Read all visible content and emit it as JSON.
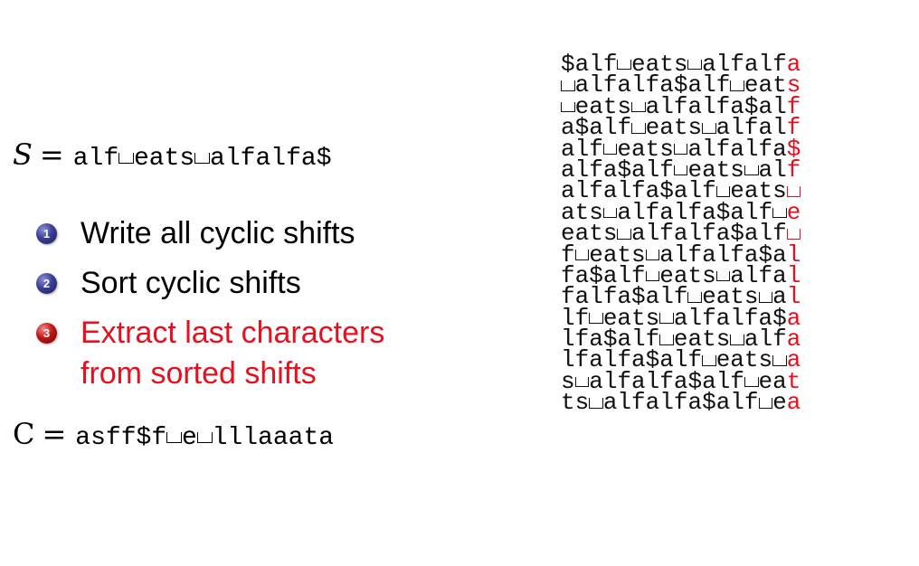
{
  "formula_s": {
    "lhs": "S",
    "eq": "=",
    "value": "alf eats alfalfa$"
  },
  "steps": [
    {
      "number": "1",
      "text": [
        "Write all cyclic shifts"
      ],
      "highlighted": false
    },
    {
      "number": "2",
      "text": [
        "Sort cyclic shifts"
      ],
      "highlighted": false
    },
    {
      "number": "3",
      "text": [
        "Extract last characters",
        "from sorted shifts"
      ],
      "highlighted": true
    }
  ],
  "formula_c": {
    "lhs": "C",
    "eq": "=",
    "value": "asff$f e lllaaata"
  },
  "sorted_shifts": [
    "$alf eats alfalfa",
    " alfalfa$alf eats",
    " eats alfalfa$alf",
    "a$alf eats alfalf",
    "alf eats alfalfa$",
    "alfa$alf eats alf",
    "alfalfa$alf eats ",
    "ats alfalfa$alf e",
    "eats alfalfa$alf ",
    "f eats alfalfa$al",
    "fa$alf eats alfal",
    "falfa$alf eats al",
    "lf eats alfalfa$a",
    "lfa$alf eats alfa",
    "lfalfa$alf eats a",
    "s alfalfa$alf eat",
    "ts alfalfa$alf ea"
  ],
  "colors": {
    "highlight": "#e8101f",
    "bullet": "#2e3188",
    "text": "#000000"
  },
  "icons": {
    "bullet": "numbered-ball-icon",
    "space": "visible-space-icon"
  }
}
